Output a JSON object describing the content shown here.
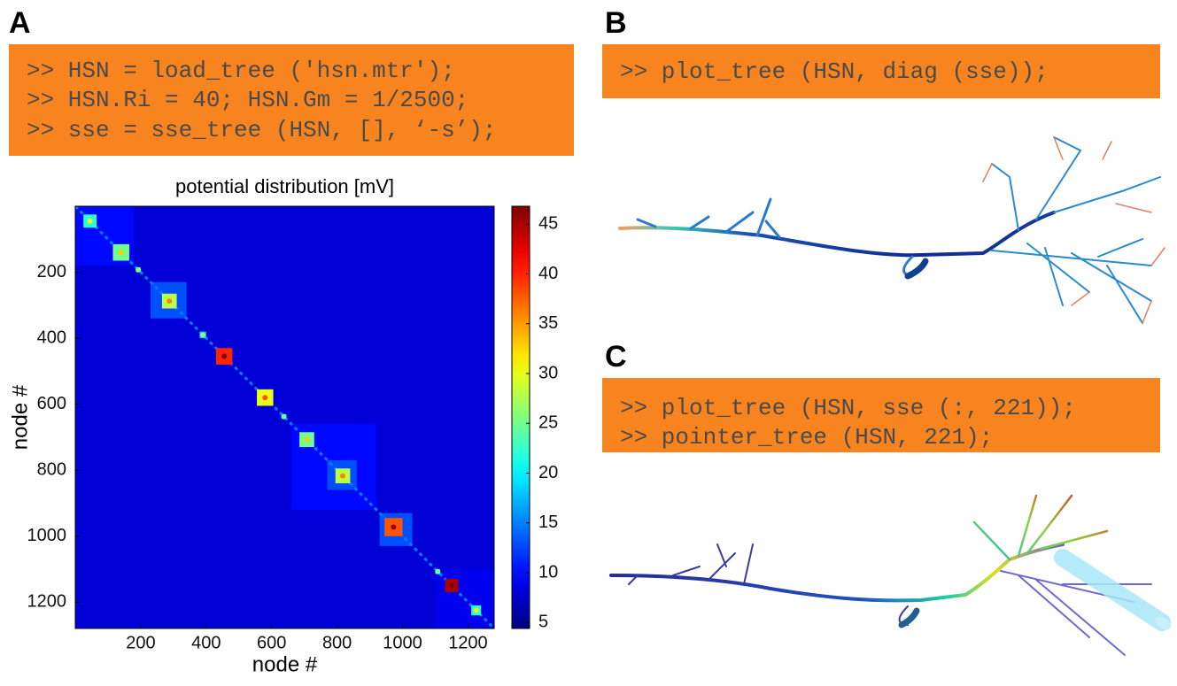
{
  "labels": {
    "a": "A",
    "b": "B",
    "c": "C"
  },
  "code": {
    "a": [
      ">> HSN = load_tree ('hsn.mtr');",
      ">> HSN.Ri = 40; HSN.Gm = 1/2500;",
      ">> sse = sse_tree (HSN, [], ‘-s’);"
    ],
    "b": [
      ">> plot_tree (HSN, diag (sse));"
    ],
    "c": [
      ">> plot_tree (HSN, sse (:, 221));",
      ">> pointer_tree (HSN, 221);"
    ]
  },
  "chart_data": {
    "type": "heatmap",
    "title": "potential distribution [mV]",
    "x_label": "node #",
    "y_label": "node #",
    "xlim": [
      0,
      1280
    ],
    "ylim": [
      0,
      1280
    ],
    "xticks": [
      200,
      400,
      600,
      800,
      1000,
      1200
    ],
    "yticks": [
      200,
      400,
      600,
      800,
      1000,
      1200
    ],
    "clim": [
      4.4,
      46.8
    ],
    "cticks": [
      5,
      10,
      15,
      20,
      25,
      30,
      35,
      40,
      45
    ],
    "colormap": "jet",
    "background": 8,
    "diagonal": 15,
    "regions": [
      {
        "start": 0,
        "end": 180,
        "value": 10
      },
      {
        "start": 230,
        "end": 340,
        "value": 13
      },
      {
        "start": 660,
        "end": 920,
        "value": 10
      },
      {
        "start": 770,
        "end": 860,
        "value": 13
      },
      {
        "start": 930,
        "end": 1030,
        "value": 13
      },
      {
        "start": 1100,
        "end": 1280,
        "value": 9
      }
    ],
    "blocks": [
      {
        "start": 25,
        "end": 65,
        "value": 22
      },
      {
        "start": 115,
        "end": 165,
        "value": 25
      },
      {
        "start": 185,
        "end": 200,
        "value": 18
      },
      {
        "start": 265,
        "end": 310,
        "value": 28
      },
      {
        "start": 380,
        "end": 400,
        "value": 18
      },
      {
        "start": 430,
        "end": 480,
        "value": 40
      },
      {
        "start": 555,
        "end": 605,
        "value": 30
      },
      {
        "start": 630,
        "end": 645,
        "value": 17
      },
      {
        "start": 685,
        "end": 730,
        "value": 25
      },
      {
        "start": 795,
        "end": 840,
        "value": 28
      },
      {
        "start": 945,
        "end": 1000,
        "value": 38
      },
      {
        "start": 1100,
        "end": 1115,
        "value": 17
      },
      {
        "start": 1130,
        "end": 1170,
        "value": 45
      },
      {
        "start": 1210,
        "end": 1240,
        "value": 22
      }
    ]
  }
}
